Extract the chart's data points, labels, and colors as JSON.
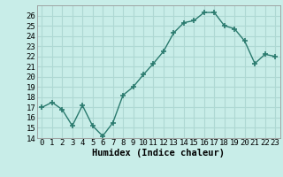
{
  "xlabel": "Humidex (Indice chaleur)",
  "x": [
    0,
    1,
    2,
    3,
    4,
    5,
    6,
    7,
    8,
    9,
    10,
    11,
    12,
    13,
    14,
    15,
    16,
    17,
    18,
    19,
    20,
    21,
    22,
    23
  ],
  "y": [
    17.0,
    17.5,
    16.8,
    15.2,
    17.2,
    15.2,
    14.2,
    15.5,
    18.2,
    19.0,
    20.2,
    21.3,
    22.5,
    24.3,
    25.3,
    25.5,
    26.3,
    26.3,
    25.0,
    24.7,
    23.5,
    21.3,
    22.2,
    22.0
  ],
  "line_color": "#2a7a6e",
  "marker_color": "#2a7a6e",
  "bg_color": "#c8ede8",
  "grid_color": "#aed8d3",
  "ylim": [
    14,
    27
  ],
  "yticks": [
    14,
    15,
    16,
    17,
    18,
    19,
    20,
    21,
    22,
    23,
    24,
    25,
    26
  ],
  "tick_fontsize": 6.5,
  "xlabel_fontsize": 7.5
}
